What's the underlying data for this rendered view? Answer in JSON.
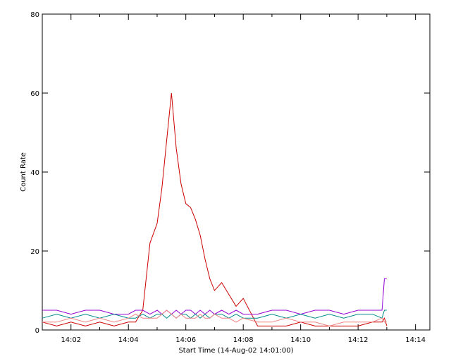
{
  "chart_data": {
    "type": "line",
    "title": "",
    "xlabel": "Start Time (14-Aug-02 14:01:00)",
    "ylabel": "Count Rate",
    "xlim": [
      "14:01:00",
      "14:14:30"
    ],
    "ylim": [
      0,
      80
    ],
    "grid": false,
    "x_ticks": [
      "14:02",
      "14:04",
      "14:06",
      "14:08",
      "14:10",
      "14:12",
      "14:14"
    ],
    "y_ticks": [
      "0",
      "20",
      "40",
      "60",
      "80"
    ],
    "x": [
      "14:01:00",
      "14:01:30",
      "14:02:00",
      "14:02:30",
      "14:03:00",
      "14:03:30",
      "14:04:00",
      "14:04:15",
      "14:04:30",
      "14:04:45",
      "14:05:00",
      "14:05:10",
      "14:05:20",
      "14:05:30",
      "14:05:40",
      "14:05:50",
      "14:06:00",
      "14:06:10",
      "14:06:20",
      "14:06:30",
      "14:06:40",
      "14:06:50",
      "14:07:00",
      "14:07:15",
      "14:07:30",
      "14:07:45",
      "14:08:00",
      "14:08:30",
      "14:09:00",
      "14:09:30",
      "14:10:00",
      "14:10:30",
      "14:11:00",
      "14:11:30",
      "14:12:00",
      "14:12:30",
      "14:12:50",
      "14:12:55",
      "14:13:00"
    ],
    "series": [
      {
        "color": "#cc0000",
        "values": [
          2,
          1,
          2,
          1,
          2,
          1,
          2,
          2,
          5,
          22,
          27,
          36,
          48,
          60,
          46,
          37,
          32,
          31,
          28,
          24,
          18,
          13,
          10,
          12,
          9,
          6,
          8,
          1,
          1,
          1,
          2,
          1,
          1,
          1,
          1,
          2,
          2,
          3,
          1
        ]
      },
      {
        "color": "#9400d3",
        "values": [
          5,
          5,
          4,
          5,
          5,
          4,
          4,
          5,
          5,
          4,
          5,
          4,
          5,
          4,
          5,
          4,
          5,
          5,
          4,
          5,
          4,
          5,
          4,
          5,
          4,
          5,
          4,
          4,
          5,
          5,
          4,
          5,
          5,
          4,
          5,
          5,
          5,
          13,
          13
        ]
      },
      {
        "color": "#008b8b",
        "values": [
          3,
          4,
          3,
          4,
          3,
          4,
          3,
          3,
          4,
          3,
          4,
          4,
          3,
          4,
          3,
          4,
          4,
          3,
          4,
          3,
          4,
          3,
          4,
          4,
          3,
          4,
          3,
          3,
          4,
          3,
          4,
          3,
          4,
          3,
          4,
          4,
          3,
          5,
          5
        ]
      },
      {
        "color": "#f08080",
        "values": [
          2,
          2,
          3,
          2,
          3,
          2,
          3,
          4,
          3,
          3,
          3,
          4,
          5,
          4,
          3,
          4,
          3,
          3,
          3,
          4,
          3,
          3,
          4,
          3,
          3,
          2,
          3,
          2,
          2,
          3,
          2,
          2,
          1,
          2,
          2,
          2,
          3,
          2,
          2
        ]
      }
    ]
  }
}
